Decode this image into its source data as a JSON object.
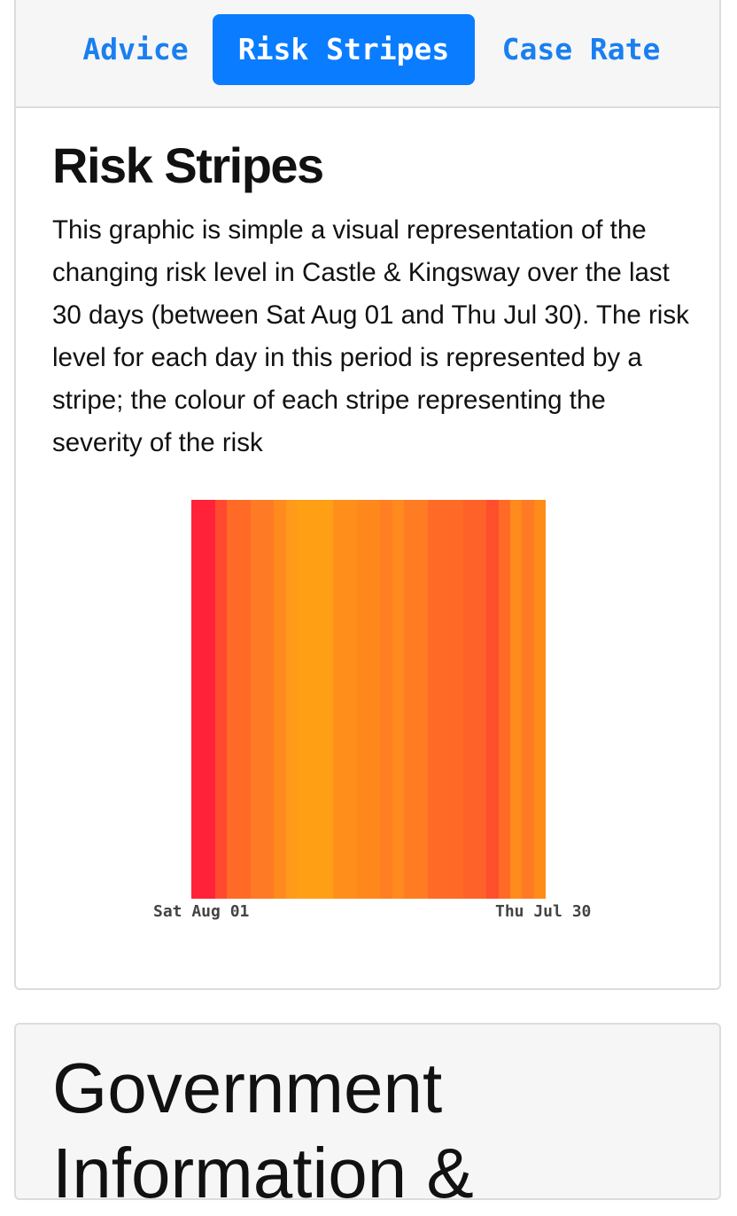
{
  "tabs": [
    {
      "label": "Advice",
      "active": false
    },
    {
      "label": "Risk Stripes",
      "active": true
    },
    {
      "label": "Case Rate",
      "active": false
    }
  ],
  "section": {
    "title": "Risk Stripes",
    "description": "This graphic is simple a visual representation of the changing risk level in Castle & Kingsway over the last 30 days (between Sat Aug 01 and Thu Jul 30). The risk level for each day in this period is represented by a stripe; the colour of each stripe representing the severity of the risk"
  },
  "chart_data": {
    "type": "heatmap",
    "x_start_label": "Sat Aug 01",
    "x_end_label": "Thu Jul 30",
    "stripe_colors": [
      "#ff2239",
      "#ff2239",
      "#ff4a30",
      "#ff6a26",
      "#ff6a26",
      "#ff7a24",
      "#ff7a24",
      "#ff8a1e",
      "#ff9a1a",
      "#ff9f14",
      "#ff9f14",
      "#ff9f14",
      "#ff8f1a",
      "#ff8f1a",
      "#ff881c",
      "#ff881c",
      "#ff7f22",
      "#ff8a1e",
      "#ff7c22",
      "#ff7c22",
      "#ff6a26",
      "#ff6a26",
      "#ff6a26",
      "#ff6228",
      "#ff6228",
      "#ff4f2c",
      "#ff6a26",
      "#ff8a1e",
      "#ff7a24",
      "#ff8c18"
    ]
  },
  "next_section": {
    "title": "Government Information &"
  }
}
